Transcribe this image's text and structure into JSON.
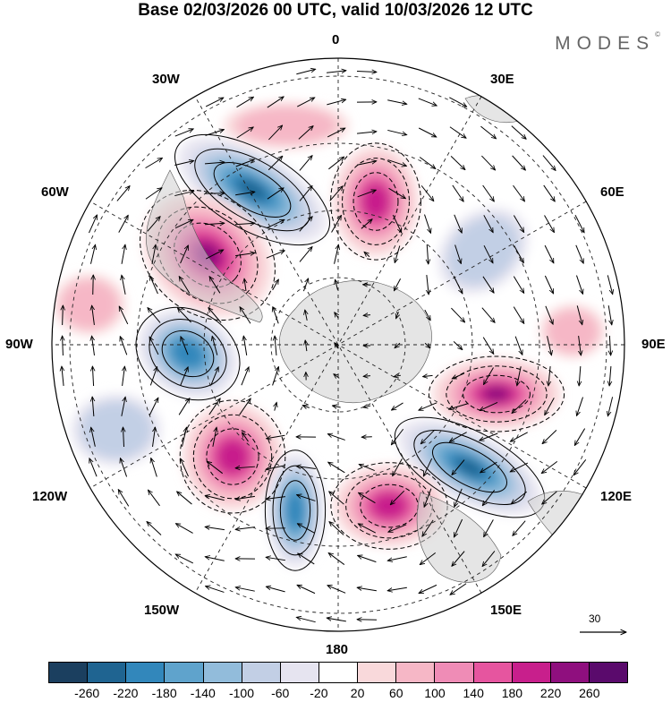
{
  "title": "Base 02/03/2026 00 UTC, valid 10/03/2026 12 UTC",
  "logo": "MODES",
  "logo_mark": "©",
  "longitude_labels": {
    "top": "0",
    "top_right": "30E",
    "right_upper": "60E",
    "right": "90E",
    "right_lower": "120E",
    "bottom_right": "150E",
    "bottom": "180",
    "bottom_left": "150W",
    "left_lower": "120W",
    "left": "90W",
    "left_upper": "60W",
    "top_left": "30W"
  },
  "reference_vector": "30",
  "colorbar": {
    "colors": [
      "#1b3f5f",
      "#1f6491",
      "#3287bb",
      "#5fa3cc",
      "#92bcdb",
      "#c2cfe5",
      "#e6e4f0",
      "#ffffff",
      "#f9d9db",
      "#f6b7c6",
      "#ef8cb6",
      "#e6559f",
      "#c81f8c",
      "#8f0f7e",
      "#5a0a6c"
    ],
    "labels": [
      "-260",
      "-220",
      "-180",
      "-140",
      "-100",
      "-60",
      "-20",
      "20",
      "60",
      "100",
      "140",
      "180",
      "220",
      "260"
    ]
  },
  "anomaly_centers": [
    {
      "sign": "negative",
      "strength": 3,
      "longitude": "30W-60W"
    },
    {
      "sign": "positive",
      "strength": 3,
      "longitude": "60W"
    },
    {
      "sign": "positive",
      "strength": 2,
      "longitude": "15E-30E"
    },
    {
      "sign": "negative",
      "strength": 2,
      "longitude": "90W"
    },
    {
      "sign": "positive",
      "strength": 3,
      "longitude": "90E-105E"
    },
    {
      "sign": "negative",
      "strength": 3,
      "longitude": "120E"
    },
    {
      "sign": "positive",
      "strength": 2,
      "longitude": "135W"
    },
    {
      "sign": "negative",
      "strength": 2,
      "longitude": "165W"
    },
    {
      "sign": "positive",
      "strength": 2,
      "longitude": "165E"
    }
  ]
}
